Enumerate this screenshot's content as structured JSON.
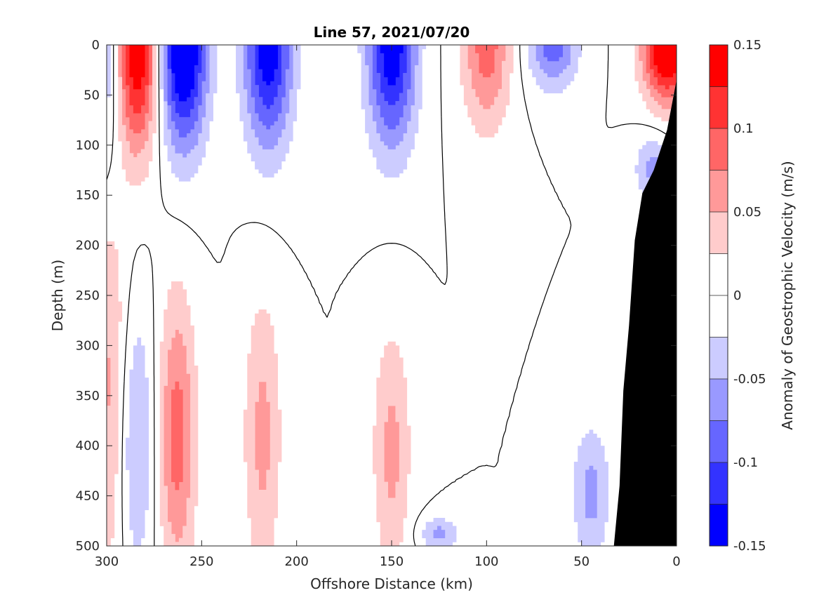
{
  "chart_data": {
    "type": "contour",
    "title": "Line 57, 2021/07/20",
    "xlabel": "Offshore Distance (km)",
    "ylabel": "Depth (m)",
    "colorbar_label": "Anomaly of Geostrophic Velocity (m/s)",
    "xlim": [
      300,
      0
    ],
    "ylim": [
      0,
      500
    ],
    "x_direction": "reversed",
    "y_direction": "reversed",
    "xticks": [
      "300",
      "250",
      "200",
      "150",
      "100",
      "50",
      "0"
    ],
    "yticks": [
      "0",
      "50",
      "100",
      "150",
      "200",
      "250",
      "300",
      "350",
      "400",
      "450",
      "500"
    ],
    "colorbar_ticks": [
      "0.15",
      "0.1",
      "0.05",
      "0",
      "-0.05",
      "-0.1",
      "-0.15"
    ],
    "colorbar_limits": [
      -0.15,
      0.15
    ],
    "levels": [
      -0.15,
      -0.125,
      -0.1,
      -0.075,
      -0.05,
      -0.025,
      0,
      0.025,
      0.05,
      0.075,
      0.1,
      0.125,
      0.15
    ],
    "colormap": "blue-white-red",
    "colors": {
      "pos1": "#ffcccc",
      "pos2": "#ff9999",
      "pos3": "#ff6666",
      "pos4": "#ff3333",
      "pos5": "#ff0000",
      "neg1": "#ccccff",
      "neg2": "#9999ff",
      "neg3": "#6666ff",
      "neg4": "#3333ff",
      "neg5": "#0000ff",
      "zero": "#ffffff",
      "bathymetry": "#000000"
    },
    "zero_contour": true,
    "grid": false,
    "features": [
      {
        "sign": "neg",
        "peak": -0.075,
        "distance_km": 300,
        "depth_m": [
          0,
          135
        ]
      },
      {
        "sign": "pos",
        "peak": 0.15,
        "distance_km": 285,
        "depth_m": [
          0,
          120
        ]
      },
      {
        "sign": "neg",
        "peak": -0.15,
        "distance_km": 260,
        "depth_m": [
          0,
          115
        ]
      },
      {
        "sign": "neg",
        "peak": -0.125,
        "distance_km": 215,
        "depth_m": [
          0,
          115
        ]
      },
      {
        "sign": "neg",
        "peak": -0.125,
        "distance_km": 150,
        "depth_m": [
          0,
          115
        ]
      },
      {
        "sign": "pos",
        "peak": 0.075,
        "distance_km": 100,
        "depth_m": [
          0,
          95
        ]
      },
      {
        "sign": "neg",
        "peak": -0.075,
        "distance_km": 65,
        "depth_m": [
          0,
          50
        ]
      },
      {
        "sign": "pos",
        "peak": 0.15,
        "distance_km": 5,
        "depth_m": [
          0,
          65
        ]
      },
      {
        "sign": "neg",
        "peak": -0.05,
        "distance_km": 12,
        "depth_m": [
          95,
          150
        ]
      },
      {
        "sign": "pos",
        "peak": 0.05,
        "distance_km": 298,
        "depth_m": [
          200,
          500
        ]
      },
      {
        "sign": "neg",
        "peak": -0.05,
        "distance_km": 285,
        "depth_m": [
          290,
          500
        ]
      },
      {
        "sign": "pos",
        "peak": 0.075,
        "distance_km": 263,
        "depth_m": [
          280,
          500
        ]
      },
      {
        "sign": "pos",
        "peak": 0.05,
        "distance_km": 218,
        "depth_m": [
          280,
          500
        ]
      },
      {
        "sign": "pos",
        "peak": 0.05,
        "distance_km": 150,
        "depth_m": [
          310,
          500
        ]
      },
      {
        "sign": "neg",
        "peak": -0.05,
        "distance_km": 125,
        "depth_m": [
          475,
          500
        ]
      },
      {
        "sign": "neg",
        "peak": -0.05,
        "distance_km": 45,
        "depth_m": [
          395,
          500
        ]
      }
    ],
    "bathymetry": {
      "distance_km": [
        0,
        5,
        12,
        18,
        22,
        25,
        28,
        30,
        33
      ],
      "depth_m": [
        35,
        85,
        125,
        148,
        195,
        280,
        345,
        440,
        500
      ]
    }
  }
}
